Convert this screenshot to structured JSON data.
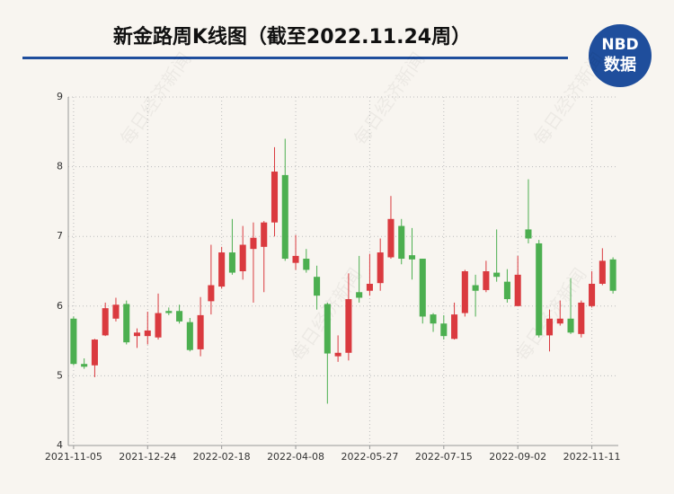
{
  "chart_data": {
    "type": "candlestick",
    "title": "新金路周K线图（截至2022.11.24周）",
    "logo": {
      "top": "NBD",
      "bottom": "数据"
    },
    "watermark": "每日经济新闻",
    "categories": [
      "2021-11-05",
      null,
      null,
      null,
      null,
      null,
      null,
      "2021-12-24",
      null,
      null,
      null,
      null,
      null,
      null,
      "2022-02-18",
      null,
      null,
      null,
      null,
      null,
      null,
      "2022-04-08",
      null,
      null,
      null,
      null,
      null,
      null,
      "2022-05-27",
      null,
      null,
      null,
      null,
      null,
      null,
      "2022-07-15",
      null,
      null,
      null,
      null,
      null,
      null,
      "2022-09-02",
      null,
      null,
      null,
      null,
      null,
      null,
      "2022-11-11",
      null,
      null
    ],
    "open": [
      5.82,
      5.17,
      5.15,
      5.58,
      5.82,
      6.03,
      5.57,
      5.57,
      5.55,
      5.93,
      5.93,
      5.77,
      5.38,
      6.07,
      6.28,
      6.77,
      6.5,
      6.82,
      6.85,
      7.2,
      7.88,
      6.62,
      6.68,
      6.42,
      6.03,
      5.28,
      5.33,
      6.2,
      6.22,
      6.33,
      6.7,
      7.15,
      6.73,
      6.68,
      5.88,
      5.75,
      5.53,
      5.9,
      6.3,
      6.23,
      6.48,
      6.35,
      6.0,
      7.1,
      6.9,
      5.58,
      5.75,
      5.82,
      5.6,
      6.0,
      6.32,
      6.67
    ],
    "high": [
      5.85,
      5.25,
      5.53,
      6.05,
      6.12,
      6.08,
      5.68,
      5.92,
      6.18,
      5.98,
      6.02,
      5.83,
      6.13,
      6.88,
      6.85,
      7.25,
      7.15,
      7.2,
      7.22,
      8.28,
      8.4,
      7.02,
      6.82,
      6.58,
      6.05,
      5.58,
      6.47,
      6.72,
      6.75,
      6.97,
      7.58,
      7.25,
      7.12,
      6.68,
      5.9,
      5.87,
      6.05,
      6.52,
      6.45,
      6.65,
      7.1,
      6.53,
      6.72,
      7.82,
      6.95,
      5.95,
      6.08,
      6.4,
      6.08,
      6.5,
      6.83,
      6.7
    ],
    "low": [
      5.15,
      5.1,
      4.98,
      5.57,
      5.78,
      5.45,
      5.4,
      5.45,
      5.52,
      5.87,
      5.75,
      5.35,
      5.28,
      5.88,
      6.25,
      6.45,
      6.38,
      6.05,
      6.2,
      7.0,
      6.65,
      6.52,
      6.48,
      5.95,
      4.6,
      5.2,
      5.22,
      6.05,
      6.15,
      6.22,
      6.68,
      6.6,
      6.38,
      5.75,
      5.63,
      5.52,
      5.52,
      5.85,
      5.85,
      6.2,
      6.35,
      6.05,
      6.0,
      6.9,
      5.55,
      5.35,
      5.72,
      5.6,
      5.55,
      5.98,
      6.3,
      6.18
    ],
    "close": [
      5.17,
      5.13,
      5.52,
      5.97,
      6.02,
      5.48,
      5.62,
      5.65,
      5.9,
      5.9,
      5.78,
      5.37,
      5.87,
      6.3,
      6.77,
      6.48,
      6.88,
      6.98,
      7.2,
      7.93,
      6.68,
      6.72,
      6.52,
      6.15,
      5.32,
      5.33,
      6.1,
      6.12,
      6.32,
      6.77,
      7.25,
      6.68,
      6.67,
      5.85,
      5.75,
      5.57,
      5.88,
      6.5,
      6.22,
      6.5,
      6.42,
      6.1,
      6.45,
      6.97,
      5.58,
      5.82,
      5.82,
      5.62,
      6.05,
      6.32,
      6.65,
      6.22
    ],
    "up_color": "#da3a3f",
    "down_color": "#4caf50",
    "ylim": [
      4,
      9
    ],
    "yticks": [
      4,
      5,
      6,
      7,
      8,
      9
    ],
    "grid": true
  }
}
